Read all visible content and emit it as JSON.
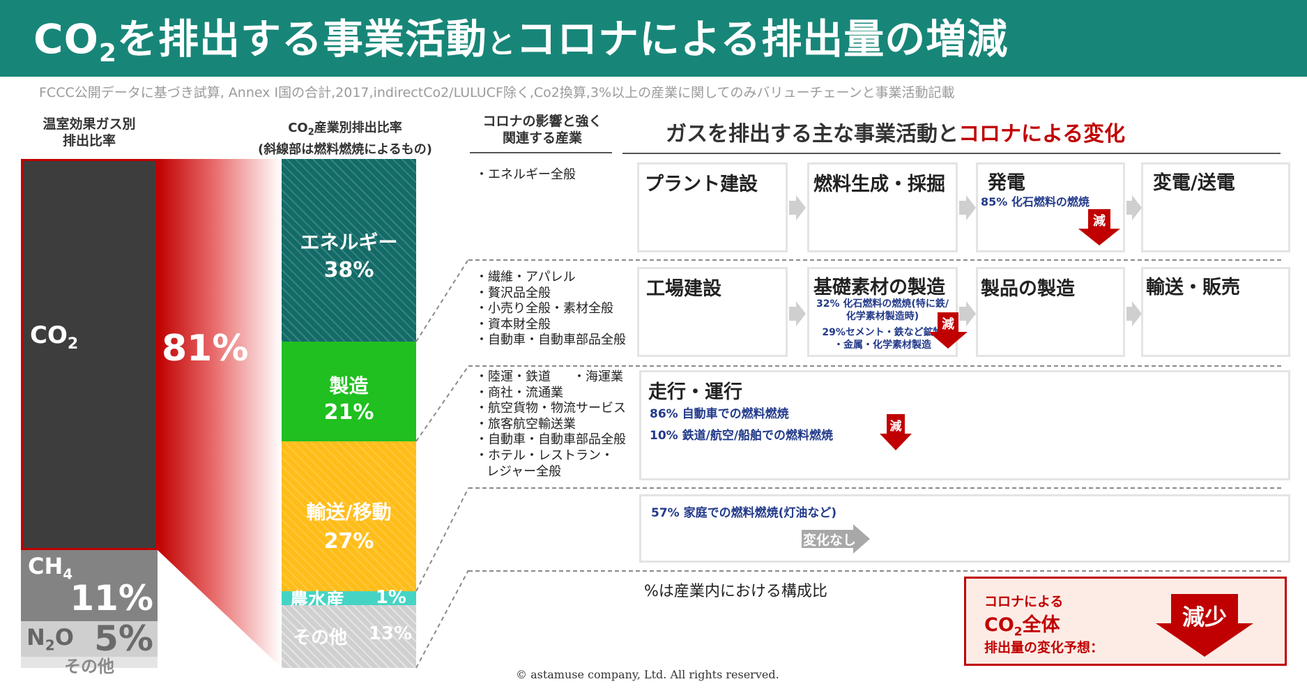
{
  "header": {
    "title_pre": "CO",
    "title_sub": "2",
    "title_mid": "を排出する事業活動",
    "title_to": "と",
    "title_post": "コロナによる排出量の増減"
  },
  "subtitle": "FCCC公開データに基づき試算, Annex I国の合計,2017,indirectCo2/LULUCF除く,Co2換算,3%以上の産業に関してのみバリューチェーンと事業活動記載",
  "gas_column": {
    "heading_line1": "温室効果ガス別",
    "heading_line2": "排出比率",
    "co2_label": "CO",
    "co2_sub": "2",
    "co2_value": "81%",
    "ch4_label": "CH",
    "ch4_sub": "4",
    "ch4_value": "11%",
    "n2o_label": "N",
    "n2o_sub": "2",
    "n2o_label_end": "O",
    "n2o_value": "5%",
    "other_label": "その他"
  },
  "industry_column": {
    "heading_line1_pre": "CO",
    "heading_line1_sub": "2",
    "heading_line1_post": "産業別排出比率",
    "heading_line2": "(斜線部は燃料燃焼によるもの)",
    "segments": [
      {
        "label": "エネルギー",
        "value": "38%"
      },
      {
        "label": "製造",
        "value": "21%"
      },
      {
        "label": "輸送/移動",
        "value": "27%"
      },
      {
        "label": "農水産",
        "value": "1%"
      },
      {
        "label": "その他",
        "value": "13%"
      }
    ]
  },
  "related_column": {
    "heading_line1": "コロナの影響と強く",
    "heading_line2": "関連する産業"
  },
  "activities_heading": {
    "pre": "ガスを排出する主な事業活動と",
    "post": "コロナによる変化"
  },
  "rows": {
    "energy": {
      "industries": [
        "・エネルギー全般"
      ],
      "boxes": [
        "プラント建設",
        "燃料生成・採掘",
        "発電",
        "変電/送電"
      ],
      "note": "85% 化石燃料の燃焼",
      "decrease_label": "減"
    },
    "manufacturing": {
      "industries": [
        "・繊維・アパレル",
        "・贅沢品全般",
        "・小売り全般・素材全般",
        "・資本財全般",
        "・自動車・自動車部品全般"
      ],
      "boxes": [
        "工場建設",
        "基礎素材の製造",
        "製品の製造",
        "輸送・販売"
      ],
      "note1_line1": "32% 化石燃料の燃焼(特に鉄/",
      "note1_line2": "化学素材製造時)",
      "note2_line1": "29%セメント・鉄など鉱物",
      "note2_line2": "・金属・化学素材製造",
      "decrease_label": "減"
    },
    "transport": {
      "industries_col1": [
        "・陸運・鉄道",
        "・商社・流通業",
        "・航空貨物・物流サービス",
        "・旅客航空輸送業",
        "・自動車・自動車部品全般",
        "・ホテル・レストラン・",
        "レジャー全般"
      ],
      "industries_col2": "・海運業",
      "box": "走行・運行",
      "note1": "86% 自動車での燃料燃焼",
      "note2": "10% 鉄道/航空/船舶での燃料燃焼",
      "decrease_label": "減"
    },
    "household": {
      "note": "57% 家庭での燃料燃焼(灯油など)",
      "nochange_label": "変化なし"
    }
  },
  "footnote": "%は産業内における構成比",
  "summary": {
    "line1": "コロナによる",
    "line2_pre": "CO",
    "line2_sub": "2",
    "line2_post": "全体",
    "line3": "排出量の変化予想：",
    "verdict": "減少"
  },
  "copyright": "© astamuse company, Ltd. All rights reserved.",
  "colors": {
    "header_bg": "#178678",
    "co2": "#3d3d3d",
    "ch4": "#838383",
    "n2o": "#cfcfcf",
    "energy": "#136b68",
    "manufacturing": "#1fc01f",
    "transport": "#ffbd1a",
    "agriculture": "#45d4c4",
    "other": "#d0d0d0",
    "accent_red": "#c00000"
  }
}
